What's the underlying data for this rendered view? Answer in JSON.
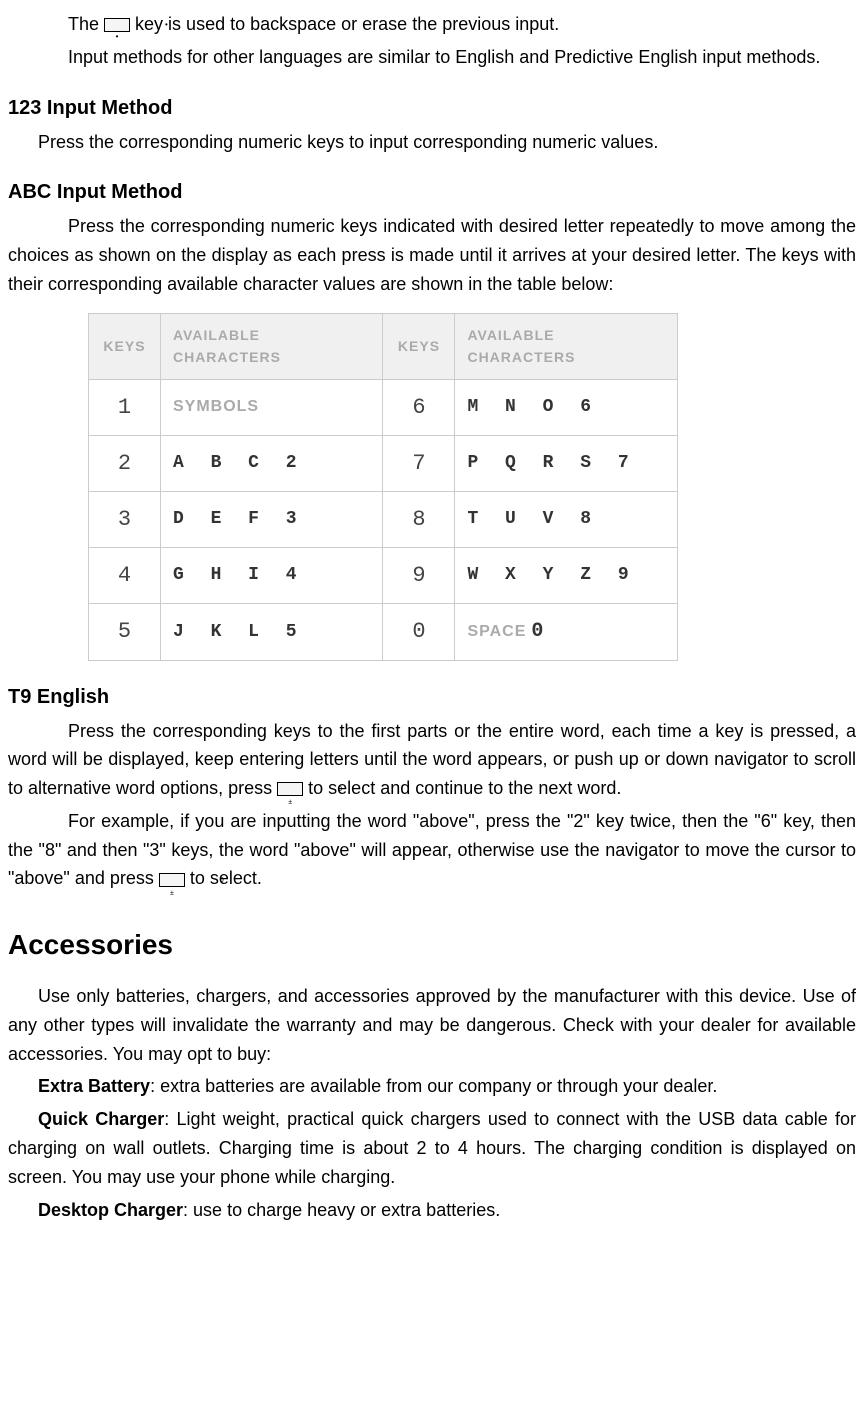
{
  "intro": {
    "p1_a": "The ",
    "p1_b": " key is used to backspace or erase the previous input.",
    "p2": "Input methods for other languages are similar to English and Predictive English input methods."
  },
  "section_123": {
    "heading": "123 Input Method",
    "p1": "Press the corresponding numeric keys to input corresponding numeric values."
  },
  "section_abc": {
    "heading": "ABC Input Method",
    "p1": "Press the corresponding numeric keys indicated with desired letter repeatedly to move among the choices as shown on the display as each press is made until it arrives at your desired letter. The keys with their corresponding available character values are shown in the table below:"
  },
  "table": {
    "header_keys": "KEYS",
    "header_chars": "AVAILABLE CHARACTERS",
    "rows": [
      {
        "k1": "1",
        "c1": "SYMBOLS",
        "k2": "6",
        "c2": "M N O 6"
      },
      {
        "k1": "2",
        "c1": "A B C 2",
        "k2": "7",
        "c2": "P Q R S 7"
      },
      {
        "k1": "3",
        "c1": "D E F 3",
        "k2": "8",
        "c2": "T U V 8"
      },
      {
        "k1": "4",
        "c1": "G H I 4",
        "k2": "9",
        "c2": "W X Y Z 9"
      },
      {
        "k1": "5",
        "c1": "J K L 5",
        "k2": "0",
        "c2_space": "SPACE",
        "c2_char": " 0"
      }
    ]
  },
  "section_t9": {
    "heading": "T9 English",
    "p1_a": "Press the corresponding keys to the first parts or the entire word, each time a key is pressed, a word will be displayed, keep entering letters until the word appears, or push up or down navigator to scroll to alternative word options, press ",
    "p1_b": " to select and continue to the next word.",
    "p2_a": "For example, if you are inputting the word \"above\", press the \"2\" key twice, then the \"6\" key, then the \"8\" and then \"3\" keys, the word \"above\" will appear, otherwise use the navigator to move the cursor to \"above\" and press ",
    "p2_b": " to select."
  },
  "section_accessories": {
    "heading": "Accessories",
    "p1": "Use only batteries, chargers, and accessories approved by the manufacturer with this device. Use of any other types will invalidate the warranty and may be dangerous. Check with your dealer for available accessories. You may opt to buy:",
    "p2_label": "Extra Battery",
    "p2": ": extra batteries are available from our company or through your dealer.",
    "p3_label": "Quick Charger",
    "p3": ": Light weight, practical quick chargers used to connect with the USB data cable for charging on wall outlets. Charging time is about 2 to 4 hours. The charging condition is displayed on screen. You may use your phone while charging.",
    "p4_label": "Desktop Charger",
    "p4": ": use to charge heavy or extra batteries."
  }
}
